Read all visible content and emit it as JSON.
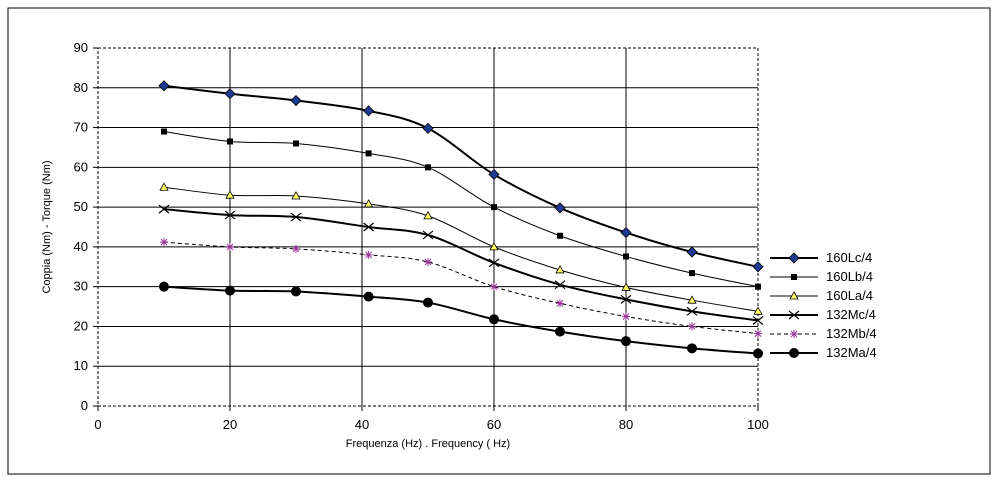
{
  "chart_data": {
    "type": "line",
    "title": "",
    "xlabel": "Frequenza (Hz)  . Frequency ( Hz)",
    "ylabel": "Coppia (Nm)  -  Torque (Nm)",
    "xlim": [
      0,
      100
    ],
    "ylim": [
      0,
      90
    ],
    "xticks": [
      0,
      20,
      40,
      60,
      80,
      100
    ],
    "yticks": [
      0,
      10,
      20,
      30,
      40,
      50,
      60,
      70,
      80,
      90
    ],
    "grid": true,
    "legend_position": "right",
    "x": [
      10,
      20,
      30,
      41,
      50,
      60,
      70,
      80,
      90,
      100
    ],
    "series": [
      {
        "name": "160Lc/4",
        "marker": "diamond",
        "color": "#000000",
        "marker_color": "#1f3a93",
        "line_width": 2,
        "dash": "",
        "values": [
          80.5,
          78.5,
          76.8,
          74.2,
          69.8,
          58.2,
          49.8,
          43.6,
          38.7,
          35.0
        ]
      },
      {
        "name": "160Lb/4",
        "marker": "square",
        "color": "#000000",
        "marker_color": "#000000",
        "line_width": 1,
        "dash": "",
        "values": [
          69.0,
          66.5,
          66.0,
          63.5,
          60.0,
          50.0,
          42.8,
          37.6,
          33.4,
          30.0
        ]
      },
      {
        "name": "160La/4",
        "marker": "triangle",
        "color": "#000000",
        "marker_color": "#ffff66",
        "line_width": 1,
        "dash": "",
        "values": [
          55.0,
          53.0,
          52.8,
          50.8,
          47.8,
          40.0,
          34.2,
          29.8,
          26.6,
          23.8
        ]
      },
      {
        "name": "132Mc/4",
        "marker": "x",
        "color": "#000000",
        "marker_color": "#000000",
        "line_width": 2,
        "dash": "",
        "values": [
          49.5,
          48.0,
          47.5,
          45.0,
          43.0,
          36.0,
          30.5,
          26.8,
          23.8,
          21.5
        ]
      },
      {
        "name": "132Mb/4",
        "marker": "asterisk",
        "color": "#000000",
        "marker_color": "#993399",
        "line_width": 1,
        "dash": "4,3",
        "values": [
          41.2,
          40.0,
          39.5,
          38.0,
          36.2,
          30.0,
          25.8,
          22.5,
          20.0,
          18.2
        ]
      },
      {
        "name": "132Ma/4",
        "marker": "circle",
        "color": "#000000",
        "marker_color": "#000000",
        "line_width": 2,
        "dash": "",
        "values": [
          30.0,
          29.0,
          28.8,
          27.5,
          26.0,
          21.8,
          18.7,
          16.3,
          14.5,
          13.2
        ]
      }
    ]
  }
}
